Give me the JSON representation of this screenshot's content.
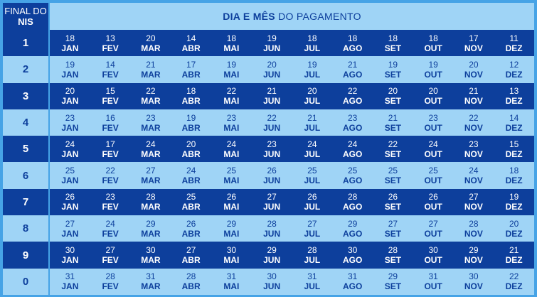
{
  "header": {
    "nis_line1": "FINAL DO",
    "nis_line2": "NIS",
    "title_bold": "DIA E MÊS",
    "title_rest": "DO PAGAMENTO"
  },
  "months": [
    "JAN",
    "FEV",
    "MAR",
    "ABR",
    "MAI",
    "JUN",
    "JUL",
    "AGO",
    "SET",
    "OUT",
    "NOV",
    "DEZ"
  ],
  "rows": [
    {
      "nis": "1",
      "days": [
        "18",
        "13",
        "20",
        "14",
        "18",
        "19",
        "18",
        "18",
        "18",
        "18",
        "17",
        "11"
      ]
    },
    {
      "nis": "2",
      "days": [
        "19",
        "14",
        "21",
        "17",
        "19",
        "20",
        "19",
        "21",
        "19",
        "19",
        "20",
        "12"
      ]
    },
    {
      "nis": "3",
      "days": [
        "20",
        "15",
        "22",
        "18",
        "22",
        "21",
        "20",
        "22",
        "20",
        "20",
        "21",
        "13"
      ]
    },
    {
      "nis": "4",
      "days": [
        "23",
        "16",
        "23",
        "19",
        "23",
        "22",
        "21",
        "23",
        "21",
        "23",
        "22",
        "14"
      ]
    },
    {
      "nis": "5",
      "days": [
        "24",
        "17",
        "24",
        "20",
        "24",
        "23",
        "24",
        "24",
        "22",
        "24",
        "23",
        "15"
      ]
    },
    {
      "nis": "6",
      "days": [
        "25",
        "22",
        "27",
        "24",
        "25",
        "26",
        "25",
        "25",
        "25",
        "25",
        "24",
        "18"
      ]
    },
    {
      "nis": "7",
      "days": [
        "26",
        "23",
        "28",
        "25",
        "26",
        "27",
        "26",
        "28",
        "26",
        "26",
        "27",
        "19"
      ]
    },
    {
      "nis": "8",
      "days": [
        "27",
        "24",
        "29",
        "26",
        "29",
        "28",
        "27",
        "29",
        "27",
        "27",
        "28",
        "20"
      ]
    },
    {
      "nis": "9",
      "days": [
        "30",
        "27",
        "30",
        "27",
        "30",
        "29",
        "28",
        "30",
        "28",
        "30",
        "29",
        "21"
      ]
    },
    {
      "nis": "0",
      "days": [
        "31",
        "28",
        "31",
        "28",
        "31",
        "30",
        "31",
        "31",
        "29",
        "31",
        "30",
        "22"
      ]
    }
  ],
  "colors": {
    "dark_row": "#0d3f9c",
    "light_row": "#9fd4f6",
    "border": "#46a3e6"
  }
}
